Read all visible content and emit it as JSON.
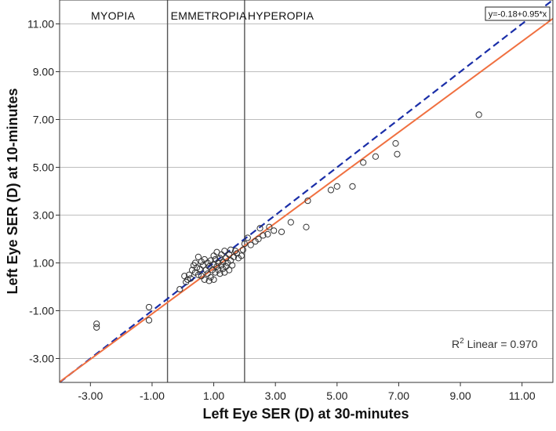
{
  "chart_data": {
    "type": "scatter",
    "xlabel": "Left Eye SER (D) at 30-minutes",
    "ylabel": "Left Eye SER (D) at 10-minutes",
    "xlim": [
      -4.0,
      12.0
    ],
    "ylim": [
      -4.0,
      12.0
    ],
    "x_ticks": [
      -3,
      -1,
      1,
      3,
      5,
      7,
      9,
      11
    ],
    "x_tick_labels": [
      "-3.00",
      "-1.00",
      "1.00",
      "3.00",
      "5.00",
      "7.00",
      "9.00",
      "11.00"
    ],
    "y_ticks": [
      -3,
      -1,
      1,
      3,
      5,
      7,
      9,
      11
    ],
    "y_tick_labels": [
      "-3.00",
      "-1.00",
      "1.00",
      "3.00",
      "5.00",
      "7.00",
      "9.00",
      "11.00"
    ],
    "grid": "horizontal",
    "regions": [
      {
        "label": "MYOPIA",
        "x_start": -4.0,
        "x_end": -0.5
      },
      {
        "label": "EMMETROPIA",
        "x_start": -0.5,
        "x_end": 2.0
      },
      {
        "label": "HYPEROPIA",
        "x_start": 2.0,
        "x_end": 12.0
      }
    ],
    "region_boundaries": [
      -0.5,
      2.0
    ],
    "fit_line": {
      "label": "y=-0.18+0.95*x",
      "intercept": -0.18,
      "slope": 0.95,
      "color": "#f07040"
    },
    "identity_line": {
      "slope": 1,
      "intercept": 0,
      "color": "#1a2ea8",
      "style": "dashed"
    },
    "r2_label": "R",
    "r2_sup": "2",
    "r2_text": " Linear = 0.970",
    "points": [
      [
        -2.8,
        -1.55
      ],
      [
        -2.8,
        -1.7
      ],
      [
        -1.1,
        -0.85
      ],
      [
        -1.1,
        -1.4
      ],
      [
        -0.1,
        -0.1
      ],
      [
        0.05,
        0.45
      ],
      [
        0.1,
        0.2
      ],
      [
        0.15,
        0.3
      ],
      [
        0.2,
        0.5
      ],
      [
        0.25,
        0.35
      ],
      [
        0.3,
        0.7
      ],
      [
        0.35,
        0.9
      ],
      [
        0.4,
        0.6
      ],
      [
        0.4,
        1.0
      ],
      [
        0.45,
        0.8
      ],
      [
        0.5,
        0.5
      ],
      [
        0.5,
        1.25
      ],
      [
        0.55,
        0.75
      ],
      [
        0.6,
        1.05
      ],
      [
        0.6,
        0.45
      ],
      [
        0.65,
        0.9
      ],
      [
        0.7,
        0.3
      ],
      [
        0.7,
        1.15
      ],
      [
        0.75,
        0.7
      ],
      [
        0.8,
        0.55
      ],
      [
        0.8,
        1.0
      ],
      [
        0.85,
        0.25
      ],
      [
        0.85,
        0.85
      ],
      [
        0.9,
        0.4
      ],
      [
        0.9,
        1.1
      ],
      [
        0.95,
        0.7
      ],
      [
        1.0,
        0.3
      ],
      [
        1.0,
        1.3
      ],
      [
        1.0,
        0.95
      ],
      [
        1.05,
        0.6
      ],
      [
        1.05,
        1.15
      ],
      [
        1.1,
        0.85
      ],
      [
        1.1,
        1.45
      ],
      [
        1.15,
        1.0
      ],
      [
        1.15,
        0.7
      ],
      [
        1.2,
        1.2
      ],
      [
        1.2,
        0.55
      ],
      [
        1.25,
        0.9
      ],
      [
        1.25,
        1.35
      ],
      [
        1.3,
        1.05
      ],
      [
        1.3,
        0.75
      ],
      [
        1.35,
        1.5
      ],
      [
        1.35,
        0.6
      ],
      [
        1.4,
        1.2
      ],
      [
        1.4,
        0.85
      ],
      [
        1.45,
        1.0
      ],
      [
        1.5,
        1.35
      ],
      [
        1.5,
        0.7
      ],
      [
        1.55,
        1.55
      ],
      [
        1.55,
        1.1
      ],
      [
        1.6,
        0.9
      ],
      [
        1.65,
        1.25
      ],
      [
        1.7,
        1.5
      ],
      [
        1.75,
        1.4
      ],
      [
        1.8,
        1.2
      ],
      [
        1.9,
        1.3
      ],
      [
        1.95,
        1.55
      ],
      [
        2.0,
        1.8
      ],
      [
        2.1,
        2.05
      ],
      [
        2.2,
        1.75
      ],
      [
        2.35,
        1.9
      ],
      [
        2.45,
        2.0
      ],
      [
        2.5,
        2.45
      ],
      [
        2.6,
        2.15
      ],
      [
        2.75,
        2.2
      ],
      [
        2.8,
        2.5
      ],
      [
        2.95,
        2.35
      ],
      [
        3.2,
        2.3
      ],
      [
        3.5,
        2.7
      ],
      [
        4.0,
        2.5
      ],
      [
        4.05,
        3.6
      ],
      [
        4.8,
        4.05
      ],
      [
        5.0,
        4.2
      ],
      [
        5.5,
        4.2
      ],
      [
        5.85,
        5.2
      ],
      [
        6.25,
        5.45
      ],
      [
        6.9,
        6.0
      ],
      [
        6.95,
        5.55
      ],
      [
        9.6,
        7.2
      ]
    ]
  }
}
